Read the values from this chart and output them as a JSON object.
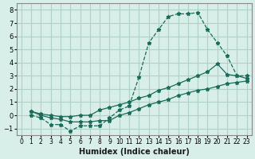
{
  "xlabel": "Humidex (Indice chaleur)",
  "ylabel": "",
  "bg_color": "#d8eee8",
  "grid_color": "#b0d0c8",
  "line_color": "#1a6b5a",
  "xlim": [
    -0.5,
    23.5
  ],
  "ylim": [
    -1.5,
    8.5
  ],
  "xticks": [
    0,
    1,
    2,
    3,
    4,
    5,
    6,
    7,
    8,
    9,
    10,
    11,
    12,
    13,
    14,
    15,
    16,
    17,
    18,
    19,
    20,
    21,
    22,
    23
  ],
  "yticks": [
    -1,
    0,
    1,
    2,
    3,
    4,
    5,
    6,
    7,
    8
  ],
  "line1_x": [
    1,
    2,
    3,
    4,
    5,
    6,
    7,
    8,
    9,
    10,
    11,
    12,
    13,
    14,
    15,
    16,
    17,
    18,
    19,
    20,
    21,
    22,
    23
  ],
  "line1_y": [
    0.0,
    -0.2,
    -0.7,
    -0.7,
    -1.2,
    -0.8,
    -0.8,
    -0.8,
    -0.2,
    0.4,
    0.7,
    2.9,
    5.5,
    6.5,
    7.5,
    7.7,
    7.7,
    7.8,
    6.5,
    5.5,
    4.5,
    3.0,
    3.0
  ],
  "line2_x": [
    1,
    2,
    3,
    4,
    5,
    6,
    7,
    8,
    9,
    10,
    11,
    12,
    13,
    14,
    15,
    16,
    17,
    18,
    19,
    20,
    21,
    22,
    23
  ],
  "line2_y": [
    0.3,
    0.0,
    -0.2,
    -0.3,
    -0.5,
    -0.5,
    -0.5,
    -0.4,
    -0.4,
    0.0,
    0.2,
    0.5,
    0.8,
    1.0,
    1.2,
    1.5,
    1.7,
    1.9,
    2.0,
    2.2,
    2.4,
    2.5,
    2.6
  ],
  "line3_x": [
    1,
    2,
    3,
    4,
    5,
    6,
    7,
    8,
    9,
    10,
    11,
    12,
    13,
    14,
    15,
    16,
    17,
    18,
    19,
    20,
    21,
    22,
    23
  ],
  "line3_y": [
    0.3,
    0.1,
    0.0,
    -0.1,
    -0.1,
    -0.0,
    0.0,
    0.4,
    0.6,
    0.8,
    1.0,
    1.3,
    1.5,
    1.9,
    2.1,
    2.4,
    2.7,
    3.0,
    3.3,
    3.9,
    3.1,
    3.0,
    2.8
  ]
}
